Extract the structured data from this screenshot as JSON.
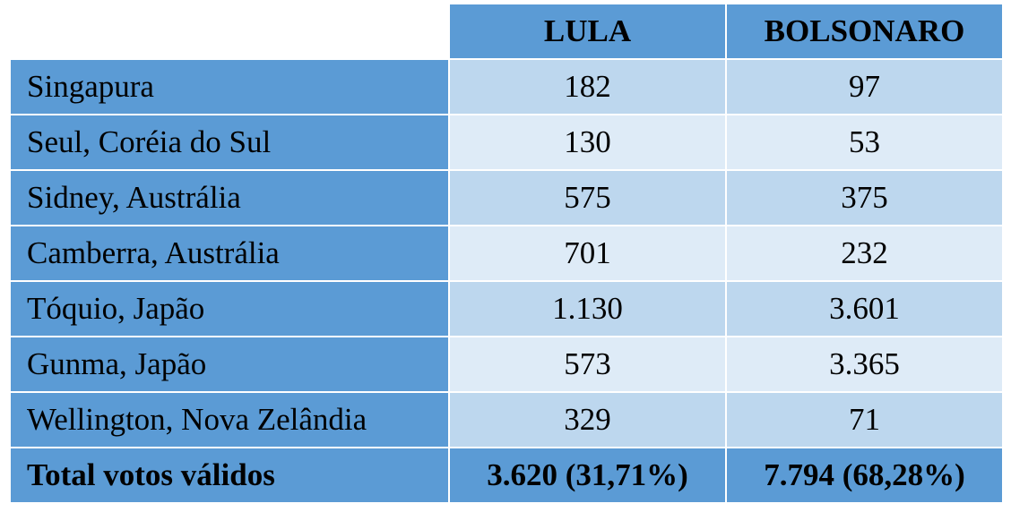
{
  "table": {
    "headers": [
      "",
      "LULA",
      "BOLSONARO"
    ],
    "rows": [
      {
        "label": "Singapura",
        "lula": "182",
        "bolsonaro": "97"
      },
      {
        "label": "Seul, Coréia do Sul",
        "lula": "130",
        "bolsonaro": "53"
      },
      {
        "label": "Sidney, Austrália",
        "lula": "575",
        "bolsonaro": "375"
      },
      {
        "label": "Camberra, Austrália",
        "lula": "701",
        "bolsonaro": "232"
      },
      {
        "label": "Tóquio, Japão",
        "lula": "1.130",
        "bolsonaro": "3.601"
      },
      {
        "label": "Gunma, Japão",
        "lula": "573",
        "bolsonaro": "3.365"
      },
      {
        "label": "Wellington, Nova Zelândia",
        "lula": "329",
        "bolsonaro": "71"
      }
    ],
    "total": {
      "label": "Total votos válidos",
      "lula": "3.620 (31,71%)",
      "bolsonaro": "7.794 (68,28%)"
    }
  },
  "colors": {
    "header_blue": "#5b9bd5",
    "row_light_1": "#bdd7ee",
    "row_light_2": "#deebf7"
  }
}
